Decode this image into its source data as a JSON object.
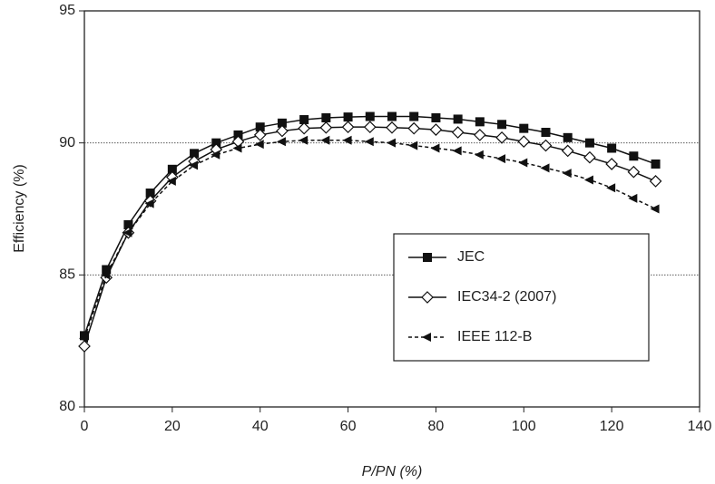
{
  "chart_data": {
    "type": "line",
    "xlabel": "P/PN (%)",
    "ylabel": "Efficiency (%)",
    "x": [
      0,
      5,
      10,
      15,
      20,
      25,
      30,
      35,
      40,
      45,
      50,
      55,
      60,
      65,
      70,
      75,
      80,
      85,
      90,
      95,
      100,
      105,
      110,
      115,
      120,
      125,
      130
    ],
    "series": [
      {
        "name": "JEC",
        "color": "#111111",
        "marker": "square",
        "dash": false,
        "values": [
          82.7,
          85.2,
          86.9,
          88.1,
          89.0,
          89.6,
          90.0,
          90.3,
          90.6,
          90.75,
          90.88,
          90.95,
          90.98,
          91.0,
          91.0,
          91.0,
          90.95,
          90.9,
          90.8,
          90.7,
          90.55,
          90.4,
          90.2,
          90.0,
          89.8,
          89.5,
          89.2
        ]
      },
      {
        "name": "IEC34-2 (2007)",
        "color": "#111111",
        "marker": "diamond-open",
        "dash": false,
        "values": [
          82.3,
          84.9,
          86.6,
          87.8,
          88.7,
          89.3,
          89.75,
          90.05,
          90.3,
          90.45,
          90.55,
          90.58,
          90.6,
          90.6,
          90.58,
          90.55,
          90.5,
          90.4,
          90.3,
          90.2,
          90.05,
          89.9,
          89.7,
          89.45,
          89.2,
          88.9,
          88.55
        ]
      },
      {
        "name": "IEEE 112-B",
        "color": "#111111",
        "marker": "triangle-left",
        "dash": true,
        "values": [
          82.6,
          85.0,
          86.6,
          87.7,
          88.55,
          89.15,
          89.55,
          89.8,
          89.95,
          90.05,
          90.1,
          90.1,
          90.1,
          90.05,
          90.0,
          89.9,
          89.8,
          89.7,
          89.55,
          89.4,
          89.25,
          89.05,
          88.85,
          88.6,
          88.3,
          87.9,
          87.5
        ]
      }
    ],
    "xlim": [
      0,
      140
    ],
    "xticks": [
      0,
      20,
      40,
      60,
      80,
      100,
      120,
      140
    ],
    "ylim": [
      80,
      95
    ],
    "yticks": [
      80,
      85,
      90,
      95
    ],
    "grid": true,
    "legend": "lower right"
  }
}
